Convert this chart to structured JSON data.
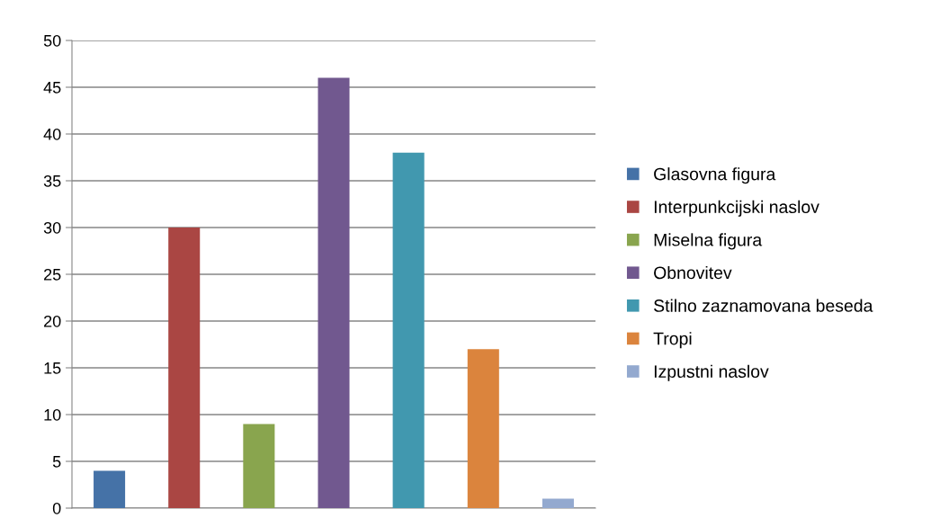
{
  "chart_data": {
    "type": "bar",
    "categories": [
      null
    ],
    "series": [
      {
        "name": "Glasovna figura",
        "color": "#4572a7",
        "values": [
          4
        ]
      },
      {
        "name": "Interpunkcijski naslov",
        "color": "#aa4643",
        "values": [
          30
        ]
      },
      {
        "name": "Miselna figura",
        "color": "#89a54e",
        "values": [
          9
        ]
      },
      {
        "name": "Obnovitev",
        "color": "#71588f",
        "values": [
          46
        ]
      },
      {
        "name": "Stilno zaznamovana beseda",
        "color": "#4198af",
        "values": [
          38
        ]
      },
      {
        "name": "Tropi",
        "color": "#db843d",
        "values": [
          17
        ]
      },
      {
        "name": "Izpustni naslov",
        "color": "#93a9cf",
        "values": [
          1
        ]
      }
    ],
    "ylim": [
      0,
      50
    ],
    "yticks": [
      0,
      5,
      10,
      15,
      20,
      25,
      30,
      35,
      40,
      45,
      50
    ],
    "grid": "y",
    "legend": "right",
    "tick_labels": "y"
  }
}
